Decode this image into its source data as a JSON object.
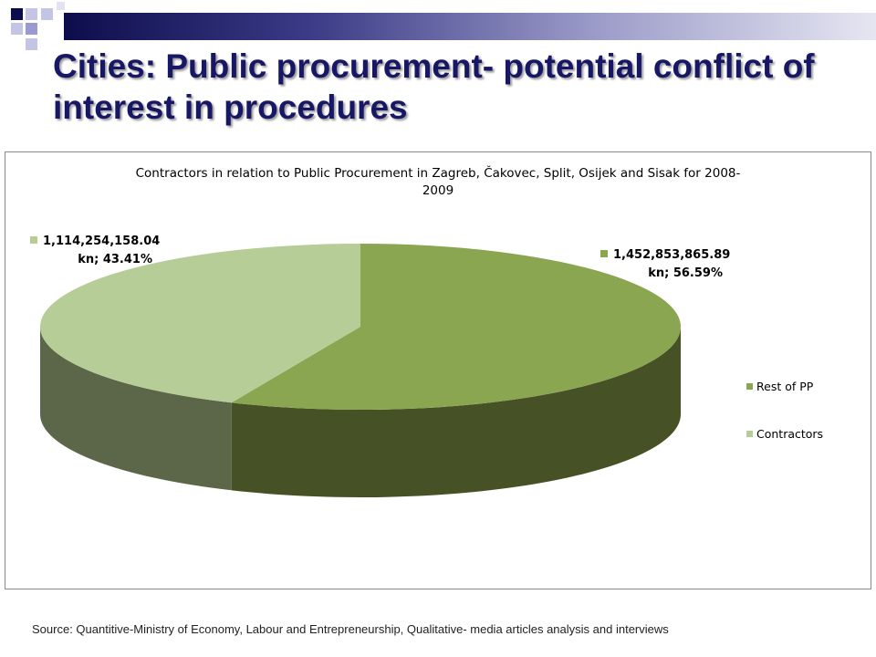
{
  "slide": {
    "title": "Cities: Public procurement- potential conflict of interest in procedures",
    "source": "Source: Quantitive-Ministry of Economy, Labour and Entrepreneurship, Qualitative- media articles analysis and interviews"
  },
  "colors": {
    "title": "#171766",
    "header_dark": "#0d0d4d",
    "rest_of_pp_top": "#8aa650",
    "rest_of_pp_side": "#465226",
    "contractors_top": "#b7cd97",
    "contractors_side": "#5c6649"
  },
  "chart_data": {
    "type": "pie",
    "style": "3d",
    "title_lines": [
      "Contractors in relation to Public Procurement in Zagreb, Čakovec, Split, Osijek and Sisak for 2008-",
      "2009"
    ],
    "legend_position": "right",
    "slices": [
      {
        "name": "Rest of PP",
        "value": 1452853865.89,
        "percent": 56.59,
        "label_lines": [
          "1,452,853,865.89",
          "kn; 56.59%"
        ],
        "color": "#8aa650"
      },
      {
        "name": "Contractors",
        "value": 1114254158.04,
        "percent": 43.41,
        "label_lines": [
          "1,114,254,158.04",
          "kn; 43.41%"
        ],
        "color": "#b7cd97"
      }
    ]
  }
}
